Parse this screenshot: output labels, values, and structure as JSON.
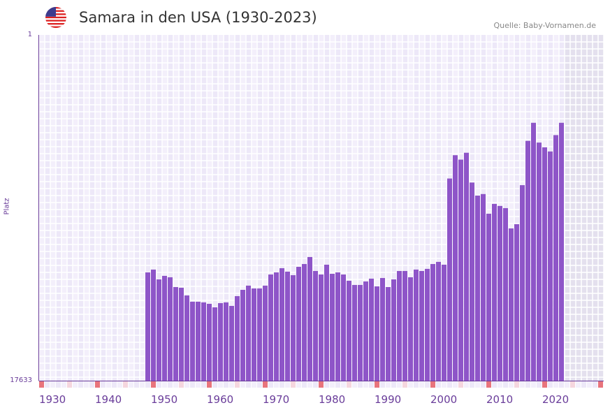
{
  "header": {
    "title": "Samara in den USA (1930-2023)",
    "source": "Quelle: Baby-Vornamen.de",
    "flag_icon": "us-flag-icon"
  },
  "colors": {
    "bar": "#8e55c8",
    "axis": "#6a3d9a",
    "marker_decade": "#e8747c",
    "marker_half": "#f5d6de",
    "future": "#e4e0ee"
  },
  "chart_data": {
    "type": "bar",
    "title": "Samara in den USA (1930-2023)",
    "xlabel": "",
    "ylabel": "Platz",
    "y_scale": "log",
    "y_inverted": true,
    "ylim": [
      1,
      17633
    ],
    "xlim": [
      1930,
      2030
    ],
    "y_tick_labels": [
      "1",
      "17633"
    ],
    "x_tick_labels": [
      "1930",
      "1940",
      "1950",
      "1960",
      "1970",
      "1980",
      "1990",
      "2000",
      "2010",
      "2020"
    ],
    "grid": true,
    "years": [
      1949,
      1950,
      1951,
      1952,
      1953,
      1954,
      1955,
      1956,
      1957,
      1958,
      1959,
      1960,
      1961,
      1962,
      1963,
      1964,
      1965,
      1966,
      1967,
      1968,
      1969,
      1970,
      1971,
      1972,
      1973,
      1974,
      1975,
      1976,
      1977,
      1978,
      1979,
      1980,
      1981,
      1982,
      1983,
      1984,
      1985,
      1986,
      1987,
      1988,
      1989,
      1990,
      1991,
      1992,
      1993,
      1994,
      1995,
      1996,
      1997,
      1998,
      1999,
      2000,
      2001,
      2002,
      2003,
      2004,
      2005,
      2006,
      2007,
      2008,
      2009,
      2010,
      2011,
      2012,
      2013,
      2014,
      2015,
      2016,
      2017,
      2018,
      2019,
      2020,
      2021,
      2022,
      2023
    ],
    "ranks": [
      825,
      762,
      1005,
      910,
      947,
      1248,
      1274,
      1583,
      1891,
      1891,
      1929,
      2007,
      2215,
      1967,
      1929,
      2129,
      1615,
      1352,
      1200,
      1300,
      1300,
      1200,
      876,
      825,
      733,
      808,
      893,
      705,
      651,
      534,
      793,
      876,
      664,
      859,
      825,
      876,
      1046,
      1177,
      1177,
      1066,
      985,
      1225,
      967,
      1248,
      1005,
      793,
      793,
      947,
      762,
      793,
      747,
      651,
      613,
      664,
      58,
      30,
      34,
      28,
      65,
      94,
      90,
      157,
      119,
      126,
      134,
      238,
      211,
      70,
      20,
      12,
      21,
      24,
      27,
      17,
      12
    ]
  }
}
